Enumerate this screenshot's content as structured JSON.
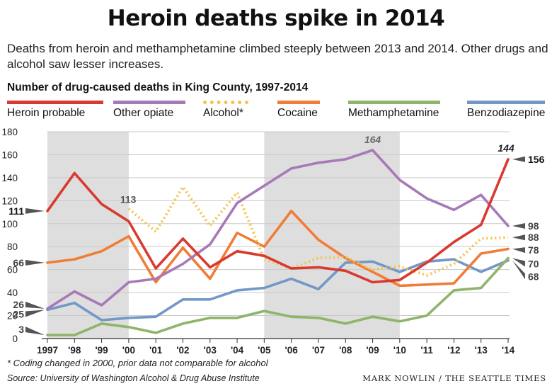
{
  "header": {
    "title": "Heroin deaths spike in 2014",
    "subtitle": "Deaths from heroin and methamphetamine climbed steeply between 2013 and 2014. Other drugs and alcohol saw lesser increases."
  },
  "footer": {
    "footnote": "* Coding changed in 2000, prior data not comparable for alcohol",
    "source": "Source: University of Washington Alcohol & Drug Abuse Institute",
    "credit": "MARK NOWLIN / THE SEATTLE TIMES"
  },
  "chart_data": {
    "type": "line",
    "title": "Number of drug-caused deaths in King County, 1997-2014",
    "xlabel": "",
    "ylabel": "",
    "ylim": [
      0,
      180
    ],
    "yticks": [
      0,
      20,
      40,
      60,
      80,
      100,
      120,
      140,
      160,
      180
    ],
    "grid": true,
    "legend_position": "top",
    "categories": [
      "1997",
      "'98",
      "'99",
      "'00",
      "'01",
      "'02",
      "'03",
      "'04",
      "'05",
      "'06",
      "'07",
      "'08",
      "'09",
      "'10",
      "'11",
      "'12",
      "'13",
      "'14"
    ],
    "shaded_ranges": [
      [
        "1997",
        "'00"
      ],
      [
        "'05",
        "'10"
      ]
    ],
    "series": [
      {
        "name": "Heroin probable",
        "color": "#d93a2f",
        "dash": false,
        "values": [
          111,
          144,
          117,
          102,
          61,
          87,
          62,
          76,
          72,
          61,
          62,
          59,
          49,
          51,
          66,
          84,
          99,
          156
        ]
      },
      {
        "name": "Other opiate",
        "color": "#a779b8",
        "dash": false,
        "values": [
          26,
          41,
          29,
          49,
          52,
          65,
          82,
          118,
          133,
          148,
          153,
          156,
          164,
          138,
          122,
          112,
          125,
          98
        ]
      },
      {
        "name": "Alcohol*",
        "color": "#f5c24a",
        "dash": true,
        "values": [
          null,
          null,
          null,
          113,
          93,
          132,
          98,
          127,
          69,
          61,
          70,
          71,
          60,
          63,
          55,
          65,
          87,
          88
        ]
      },
      {
        "name": "Cocaine",
        "color": "#ef7d37",
        "dash": false,
        "values": [
          66,
          69,
          76,
          89,
          49,
          79,
          52,
          92,
          80,
          111,
          86,
          70,
          58,
          46,
          47,
          48,
          74,
          78
        ]
      },
      {
        "name": "Methamphetamine",
        "color": "#8fb46a",
        "dash": false,
        "values": [
          3,
          3,
          13,
          10,
          5,
          13,
          18,
          18,
          24,
          19,
          18,
          13,
          19,
          15,
          20,
          42,
          44,
          70
        ]
      },
      {
        "name": "Benzodiazepine",
        "color": "#7398c7",
        "dash": false,
        "values": [
          25,
          31,
          16,
          18,
          19,
          34,
          34,
          42,
          44,
          52,
          43,
          66,
          67,
          58,
          67,
          69,
          58,
          68
        ]
      }
    ],
    "annotations": {
      "start": [
        {
          "series": "Heroin probable",
          "label": "111"
        },
        {
          "series": "Cocaine",
          "label": "66"
        },
        {
          "series": "Other opiate",
          "label": "26"
        },
        {
          "series": "Benzodiazepine",
          "label": "25"
        },
        {
          "series": "Methamphetamine",
          "label": "3"
        }
      ],
      "alcohol_start": "113",
      "heroin_peak": "144",
      "opiate_peak": "164",
      "end": [
        {
          "series": "Heroin probable",
          "label": "156"
        },
        {
          "series": "Other opiate",
          "label": "98"
        },
        {
          "series": "Alcohol*",
          "label": "88"
        },
        {
          "series": "Cocaine",
          "label": "78"
        },
        {
          "series": "Methamphetamine",
          "label": "70"
        },
        {
          "series": "Benzodiazepine",
          "label": "68"
        }
      ]
    }
  }
}
